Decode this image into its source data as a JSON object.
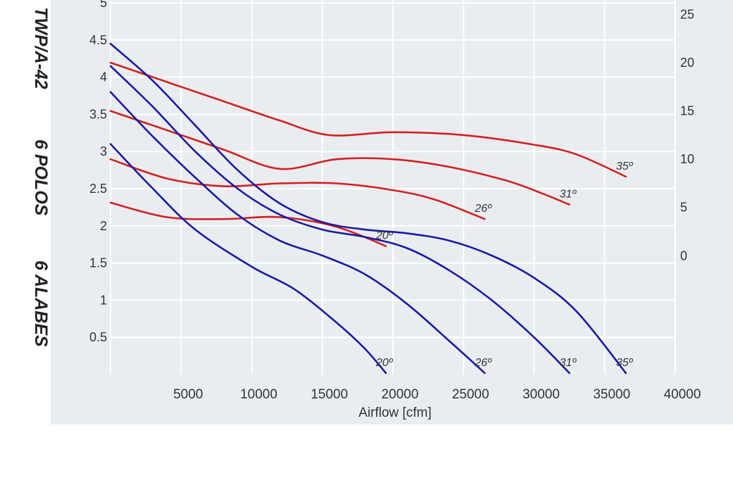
{
  "side_labels": {
    "model": "TWP/A-42",
    "poles": "6 POLOS",
    "blades": "6 ALABES"
  },
  "chart_data": {
    "type": "line",
    "xlabel": "Airflow [cfm]",
    "x_ticks": [
      5000,
      10000,
      15000,
      20000,
      25000,
      30000,
      35000,
      40000
    ],
    "x_tick_labels": [
      "5000",
      "10000",
      "15000",
      "20000",
      "25000",
      "30000",
      "35000",
      "40000"
    ],
    "xlim": [
      0,
      40000
    ],
    "y_left_ticks": [
      0.5,
      1,
      1.5,
      2,
      2.5,
      3,
      3.5,
      4,
      4.5,
      5
    ],
    "y_left_tick_labels": [
      "0.5",
      "1",
      "1.5",
      "2",
      "2.5",
      "3",
      "3.5",
      "4",
      "4.5",
      "5"
    ],
    "y_left_lim": [
      0,
      5
    ],
    "y_right_ticks": [
      0,
      5,
      10,
      15,
      20,
      25
    ],
    "y_right_tick_labels": [
      "0",
      "5",
      "10",
      "15",
      "20",
      "25"
    ],
    "y_right_lim": [
      -12.3,
      26.2
    ],
    "grid": true,
    "colors": {
      "pressure": "#1a1aa6",
      "power": "#d42020",
      "background": "#e9edf0",
      "grid": "#ffffff"
    },
    "pressure_series": [
      {
        "name": "20º",
        "label": "20º",
        "axis": "left",
        "x": [
          0,
          3000,
          6000,
          10000,
          13000,
          16000,
          18000,
          19500
        ],
        "y": [
          3.1,
          2.5,
          1.95,
          1.45,
          1.15,
          0.7,
          0.35,
          0.02
        ]
      },
      {
        "name": "26º",
        "label": "26º",
        "axis": "left",
        "x": [
          0,
          3000,
          6000,
          9000,
          12000,
          15000,
          18000,
          21000,
          24000,
          26500
        ],
        "y": [
          3.8,
          3.2,
          2.65,
          2.15,
          1.8,
          1.6,
          1.35,
          0.95,
          0.45,
          0.02
        ]
      },
      {
        "name": "31º",
        "label": "31º",
        "axis": "left",
        "x": [
          0,
          3000,
          6000,
          9000,
          12000,
          15000,
          18000,
          21000,
          24000,
          27000,
          30000,
          32500
        ],
        "y": [
          4.15,
          3.6,
          3.0,
          2.5,
          2.15,
          1.95,
          1.85,
          1.7,
          1.4,
          1.0,
          0.5,
          0.02
        ]
      },
      {
        "name": "35º",
        "label": "35º",
        "axis": "left",
        "x": [
          0,
          3000,
          6000,
          9000,
          12000,
          15000,
          18000,
          21000,
          24000,
          27000,
          30000,
          33000,
          36500
        ],
        "y": [
          4.45,
          3.95,
          3.35,
          2.75,
          2.3,
          2.05,
          1.95,
          1.9,
          1.8,
          1.6,
          1.3,
          0.85,
          0.02
        ]
      }
    ],
    "power_series": [
      {
        "name": "20º",
        "label": "20º",
        "axis": "right",
        "x": [
          0,
          4000,
          8000,
          12000,
          16000,
          19500
        ],
        "y": [
          5.5,
          4.0,
          3.8,
          4.0,
          3.0,
          1.0
        ]
      },
      {
        "name": "26º",
        "label": "26º",
        "axis": "right",
        "x": [
          0,
          4000,
          8000,
          12000,
          16000,
          20000,
          23000,
          26500
        ],
        "y": [
          10.0,
          8.0,
          7.2,
          7.5,
          7.5,
          6.8,
          5.8,
          3.8
        ]
      },
      {
        "name": "31º",
        "label": "31º",
        "axis": "right",
        "x": [
          0,
          4000,
          8000,
          12000,
          16000,
          20000,
          24000,
          28000,
          30500,
          32500
        ],
        "y": [
          15.0,
          13.0,
          11.0,
          9.0,
          10.0,
          10.0,
          9.2,
          7.8,
          6.5,
          5.3
        ]
      },
      {
        "name": "35º",
        "label": "35º",
        "axis": "right",
        "x": [
          0,
          4000,
          8000,
          12000,
          15500,
          20000,
          25000,
          30000,
          33000,
          36500
        ],
        "y": [
          20.0,
          18.0,
          16.0,
          14.0,
          12.5,
          12.8,
          12.5,
          11.5,
          10.5,
          8.2
        ]
      }
    ]
  }
}
